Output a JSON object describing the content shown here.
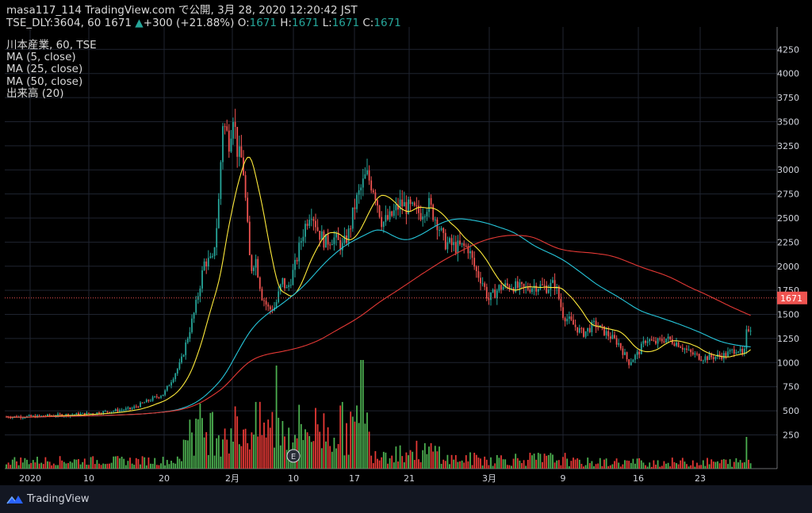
{
  "header": {
    "line1": "masa117_114 TradingView.com で公開, 3月 28, 2020 12:20:42 JST",
    "symbol": "TSE_DLY:3604, 60",
    "last": "1671",
    "change_arrow": "▲",
    "change": "+300 (+21.88%)",
    "o_label": "O:",
    "o": "1671",
    "h_label": "H:",
    "h": "1671",
    "l_label": "L:",
    "l": "1671",
    "c_label": "C:",
    "c": "1671"
  },
  "legend": {
    "title": "川本産業, 60, TSE",
    "ma5": "MA (5, close)",
    "ma25": "MA (25, close)",
    "ma50": "MA (50, close)",
    "volume": "出来高 (20)"
  },
  "price_label": "1671",
  "earnings_marker": "E",
  "brand": "TradingView",
  "colors": {
    "background": "#000000",
    "up": "#26a69a",
    "down": "#ef5350",
    "volume_up": "#4caf50",
    "volume_down": "#e53935",
    "ma5": "#ffeb3b",
    "ma25": "#26c6da",
    "ma50": "#e53935",
    "grid": "#1f2430",
    "price_line": "#ef5350"
  },
  "chart_data": {
    "type": "candlestick",
    "interval": "60",
    "y_axis": {
      "ticks": [
        250,
        500,
        750,
        1000,
        1250,
        1500,
        1750,
        2000,
        2250,
        2500,
        2750,
        3000,
        3250,
        3500,
        3750,
        4000,
        4250
      ],
      "range": [
        -100,
        4450
      ]
    },
    "x_axis": {
      "tick_labels": [
        "2020",
        "10",
        "20",
        "2月",
        "10",
        "17",
        "21",
        "3月",
        "9",
        "16",
        "23"
      ]
    },
    "last_price": 1671,
    "key_points": [
      {
        "label": "2020",
        "close": 440
      },
      {
        "label": "10",
        "close": 470
      },
      {
        "label": "20",
        "close": 680
      },
      {
        "label": "2月",
        "close": 3400
      },
      {
        "label": "10",
        "close": 1800
      },
      {
        "label": "17",
        "close": 2750
      },
      {
        "label": "21",
        "close": 2600
      },
      {
        "label": "3月",
        "close": 2000
      },
      {
        "label": "9",
        "close": 1400
      },
      {
        "label": "16",
        "close": 1150
      },
      {
        "label": "23",
        "close": 1050
      },
      {
        "label": "last",
        "close": 1671
      }
    ],
    "peak_high": 4000,
    "series": [
      {
        "name": "MA (5, close)"
      },
      {
        "name": "MA (25, close)"
      },
      {
        "name": "MA (50, close)"
      },
      {
        "name": "出来高 (20)"
      }
    ]
  }
}
